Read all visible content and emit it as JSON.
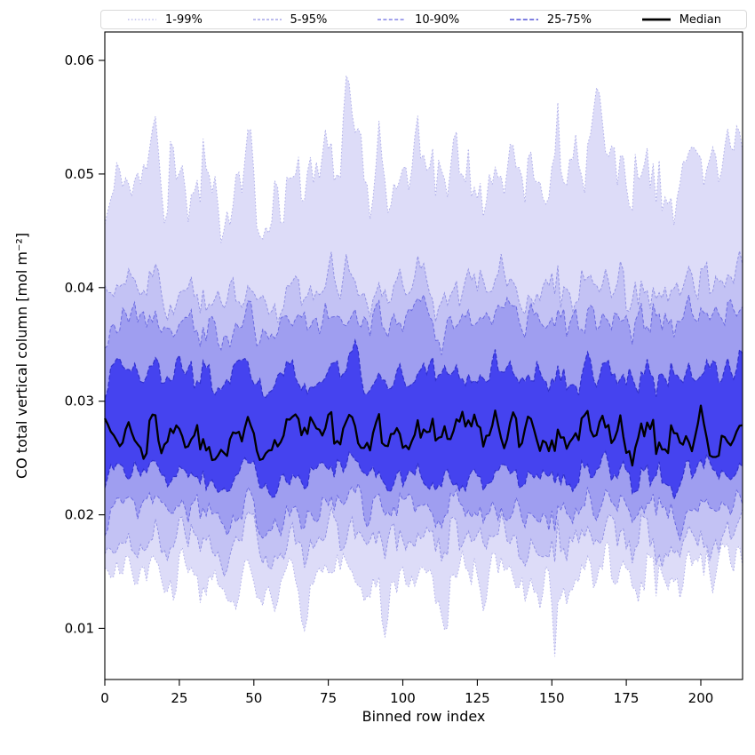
{
  "chart_data": {
    "type": "area",
    "variant": "percentile-fan",
    "xlabel": "Binned row index",
    "ylabel": "CO total vertical column [mol m⁻²]",
    "xlim": [
      0,
      214
    ],
    "ylim": [
      0.0055,
      0.0625
    ],
    "xticks": [
      0,
      25,
      50,
      75,
      100,
      125,
      150,
      175,
      200
    ],
    "yticks": [
      0.01,
      0.02,
      0.03,
      0.04,
      0.05,
      0.06
    ],
    "n_points": 215,
    "seed": 1337,
    "grid": false,
    "legend_position": "top-expanded",
    "bands": [
      {
        "label": "1-99%",
        "fill": "#dddcf8",
        "edge": "#aeaee8",
        "dash": "1.5 2.4",
        "upper_mean": 0.0505,
        "upper_amp": 0.005,
        "lower_mean": 0.0148,
        "lower_amp": 0.0032
      },
      {
        "label": "5-95%",
        "fill": "#c3c2f4",
        "edge": "#9393e4",
        "dash": "3 2",
        "upper_mean": 0.0402,
        "upper_amp": 0.0028,
        "lower_mean": 0.018,
        "lower_amp": 0.0025
      },
      {
        "label": "10-90%",
        "fill": "#9f9ef0",
        "edge": "#6a6ae0",
        "dash": "4 2.4",
        "upper_mean": 0.0373,
        "upper_amp": 0.0025,
        "lower_mean": 0.0205,
        "lower_amp": 0.0022
      },
      {
        "label": "25-75%",
        "fill": "#4543ef",
        "edge": "#3030cf",
        "dash": "5 2.4",
        "upper_mean": 0.0327,
        "upper_amp": 0.0022,
        "lower_mean": 0.0237,
        "lower_amp": 0.0018
      }
    ],
    "median": {
      "label": "Median",
      "color": "#000000",
      "mean": 0.0272,
      "amp": 0.0025,
      "line_width": 2.3
    }
  }
}
